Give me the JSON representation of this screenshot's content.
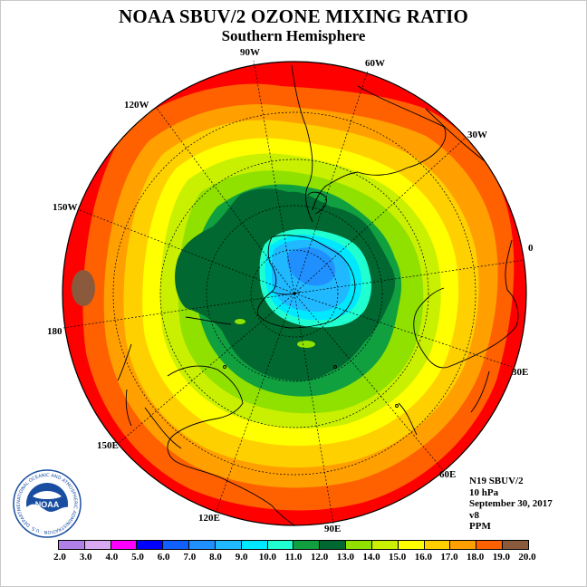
{
  "header": {
    "title": "NOAA SBUV/2 OZONE MIXING RATIO",
    "subtitle": "Southern Hemisphere"
  },
  "longitude_labels": [
    "90W",
    "60W",
    "30W",
    "0",
    "30E",
    "60E",
    "90E",
    "120E",
    "150E",
    "180",
    "150W",
    "120W"
  ],
  "info": {
    "satellite": "N19 SBUV/2",
    "level": "10 hPa",
    "date": "September 30, 2017",
    "version": "v8",
    "units": "PPM"
  },
  "colorbar": {
    "labels": [
      "2.0",
      "3.0",
      "4.0",
      "5.0",
      "6.0",
      "7.0",
      "8.0",
      "9.0",
      "10.0",
      "11.0",
      "12.0",
      "13.0",
      "14.0",
      "15.0",
      "16.0",
      "17.0",
      "18.0",
      "19.0",
      "20.0"
    ],
    "colors": [
      "#b080e8",
      "#d8a8f0",
      "#ff00ff",
      "#0000ff",
      "#1060ff",
      "#2090ff",
      "#20b8ff",
      "#00e8ff",
      "#20ffd0",
      "#10a040",
      "#006830",
      "#90e000",
      "#c8f000",
      "#ffff00",
      "#ffd000",
      "#ffa000",
      "#ff6000",
      "#ff0000",
      "#8b5a3c"
    ]
  },
  "logo": {
    "text": "NOAA",
    "ring_text": "NATIONAL OCEANIC AND ATMOSPHERIC ADMINISTRATION · U.S. DEPARTMENT OF COMMERCE"
  },
  "map_colors": {
    "c19": "#ff0000",
    "c18": "#ff6000",
    "c17": "#ffa000",
    "c16": "#ffd000",
    "c15": "#ffff00",
    "c14": "#c8f000",
    "c13": "#90e000",
    "c12": "#10a040",
    "c11": "#006830",
    "c10": "#20ffd0",
    "c9": "#00e8ff",
    "c8": "#20b8ff",
    "c7": "#2090ff",
    "c20": "#8b5a3c"
  }
}
